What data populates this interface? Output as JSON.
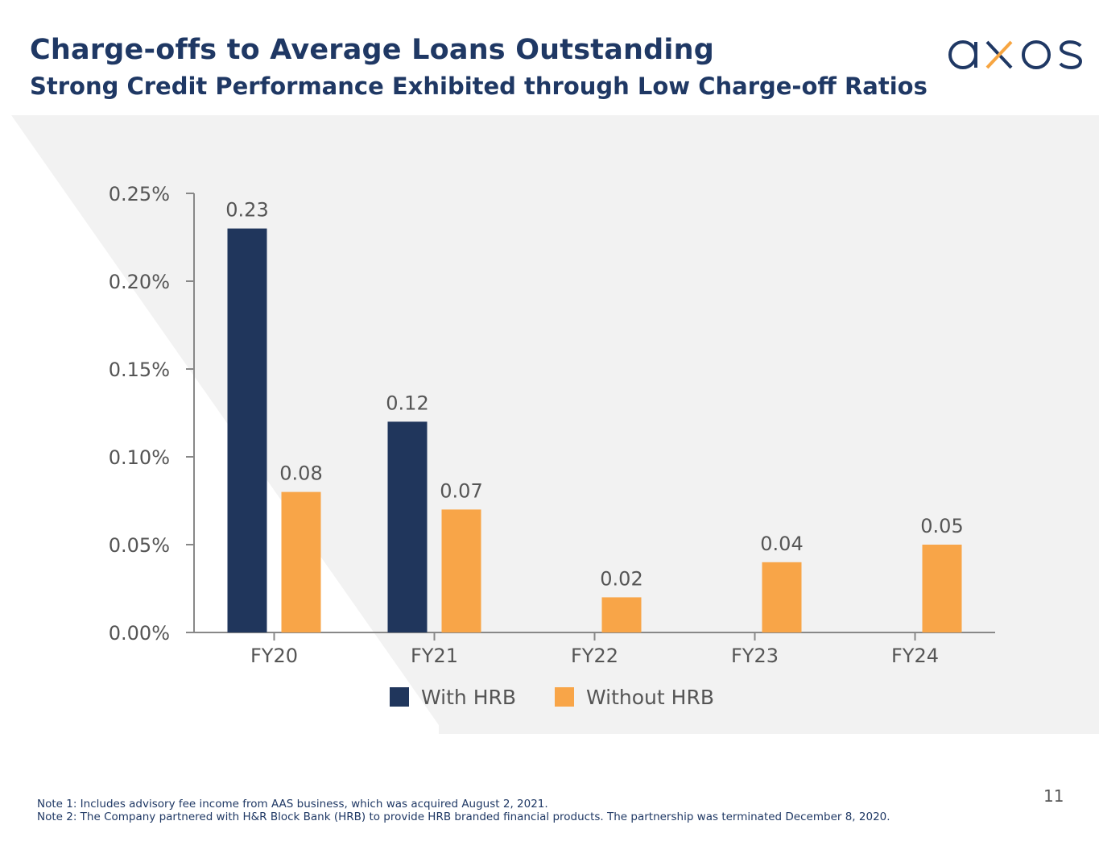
{
  "header": {
    "title": "Charge-offs to Average Loans Outstanding",
    "subtitle": "Strong Credit Performance Exhibited through Low Charge-off Ratios"
  },
  "logo": {
    "text": "axos",
    "icon": "axos-logo",
    "colors": {
      "primary": "#1f3864",
      "accent": "#f7a541"
    }
  },
  "colors": {
    "with_hrb": "#20365c",
    "without_hrb": "#f8a548",
    "panel": "#f2f2f2",
    "axis": "#888888",
    "text": "#555555"
  },
  "chart_data": {
    "type": "bar",
    "title": "",
    "categories": [
      "FY20",
      "FY21",
      "FY22",
      "FY23",
      "FY24"
    ],
    "series": [
      {
        "name": "With HRB",
        "values": [
          0.23,
          0.12,
          null,
          null,
          null
        ]
      },
      {
        "name": "Without HRB",
        "values": [
          0.08,
          0.07,
          0.02,
          0.04,
          0.05
        ]
      }
    ],
    "data_labels": {
      "With HRB": [
        "0.23",
        "0.12",
        null,
        null,
        null
      ],
      "Without HRB": [
        "0.08",
        "0.07",
        "0.02",
        "0.04",
        "0.05"
      ]
    },
    "yticks": [
      0,
      0.05,
      0.1,
      0.15,
      0.2,
      0.25
    ],
    "ytick_labels": [
      "0.00%",
      "0.05%",
      "0.10%",
      "0.15%",
      "0.20%",
      "0.25%"
    ],
    "ylim": [
      0,
      0.25
    ],
    "xlabel": "",
    "ylabel": "",
    "grid": false,
    "legend": {
      "position": "bottom-center",
      "entries": [
        "With HRB",
        "Without HRB"
      ]
    }
  },
  "notes": [
    "Note 1: Includes advisory fee income from AAS business, which was acquired August 2, 2021.",
    "Note 2: The Company partnered with H&R Block Bank (HRB) to provide HRB branded financial products. The partnership was terminated December 8, 2020."
  ],
  "page_number": "11"
}
